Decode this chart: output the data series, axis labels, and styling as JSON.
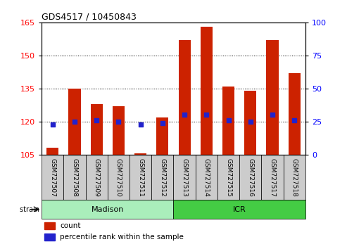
{
  "title": "GDS4517 / 10450843",
  "samples": [
    "GSM727507",
    "GSM727508",
    "GSM727509",
    "GSM727510",
    "GSM727511",
    "GSM727512",
    "GSM727513",
    "GSM727514",
    "GSM727515",
    "GSM727516",
    "GSM727517",
    "GSM727518"
  ],
  "counts": [
    108,
    135,
    128,
    127,
    105.5,
    122,
    157,
    163,
    136,
    134,
    157,
    142
  ],
  "percentile_ranks": [
    23,
    25,
    26,
    25,
    23,
    24,
    30,
    30,
    26,
    25,
    30,
    26
  ],
  "ylim_left": [
    105,
    165
  ],
  "ylim_right": [
    0,
    100
  ],
  "yticks_left": [
    105,
    120,
    135,
    150,
    165
  ],
  "yticks_right": [
    0,
    25,
    50,
    75,
    100
  ],
  "bar_color": "#cc2200",
  "dot_color": "#2222cc",
  "bar_bottom": 105,
  "strain_groups": [
    {
      "label": "Madison",
      "start": 0,
      "end": 6,
      "color": "#aaeebb"
    },
    {
      "label": "ICR",
      "start": 6,
      "end": 12,
      "color": "#44cc44"
    }
  ],
  "tick_area_color": "#cccccc",
  "background_color": "#ffffff",
  "legend_items": [
    {
      "label": "count",
      "color": "#cc2200"
    },
    {
      "label": "percentile rank within the sample",
      "color": "#2222cc"
    }
  ]
}
